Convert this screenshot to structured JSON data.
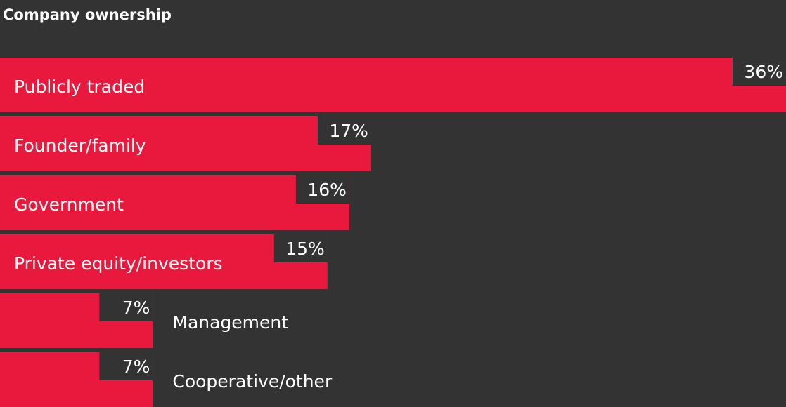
{
  "chart_data": {
    "type": "bar",
    "orientation": "horizontal",
    "title": "Company ownership",
    "categories": [
      "Publicly traded",
      "Founder/family",
      "Government",
      "Private equity/investors",
      "Management",
      "Cooperative/other"
    ],
    "values": [
      36,
      17,
      16,
      15,
      7,
      7
    ],
    "value_labels": [
      "36%",
      "17%",
      "16%",
      "15%",
      "7%",
      "7%"
    ],
    "color": "#e8193c",
    "xlim": [
      0,
      36
    ]
  }
}
